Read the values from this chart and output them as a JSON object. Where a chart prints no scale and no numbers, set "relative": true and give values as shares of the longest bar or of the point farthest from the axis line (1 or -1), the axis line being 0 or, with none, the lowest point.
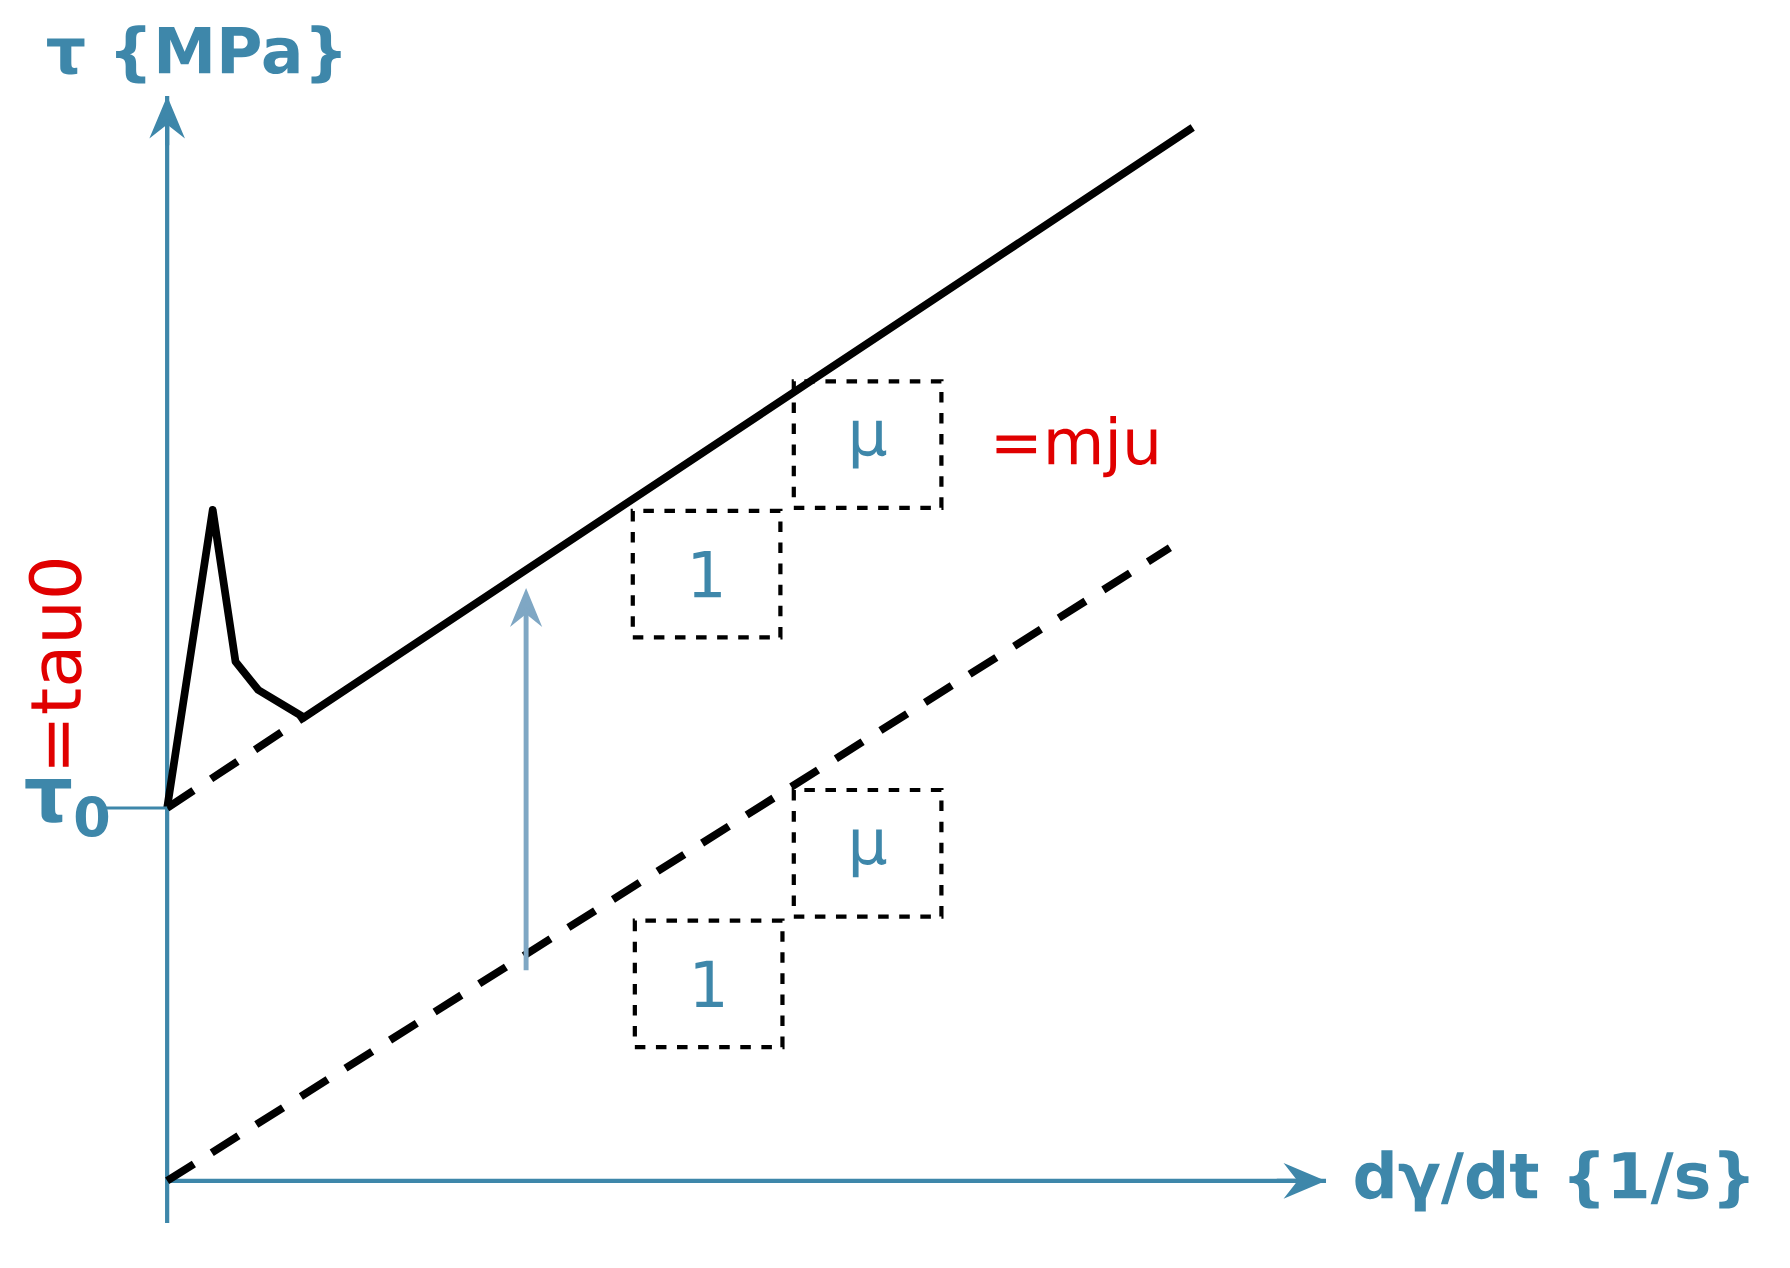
{
  "chart_data": {
    "type": "line",
    "relative": true,
    "xlabel": "dγ/dt  {1/s}",
    "ylabel": "τ {MPa}",
    "categories": [
      null,
      null,
      null,
      null,
      null,
      null,
      null,
      null,
      null,
      null,
      null,
      null,
      null,
      null,
      null,
      null,
      null,
      null,
      null,
      null,
      null,
      null,
      null,
      null,
      null,
      null,
      null,
      null,
      null,
      null,
      null,
      null,
      null,
      null,
      null,
      null,
      null,
      null,
      null,
      null,
      null,
      null,
      null,
      null,
      null,
      null
    ],
    "series": [
      {
        "color": "#000000",
        "line_style": "solid",
        "values": [
          0.354,
          null,
          0.637,
          0.493,
          0.466,
          null,
          0.44,
          null,
          null,
          null,
          null,
          null,
          null,
          null,
          null,
          null,
          null,
          null,
          null,
          null,
          null,
          null,
          null,
          null,
          null,
          null,
          null,
          null,
          null,
          null,
          null,
          null,
          null,
          null,
          null,
          null,
          null,
          null,
          null,
          null,
          null,
          null,
          null,
          null,
          null,
          1
        ]
      },
      {
        "color": "#000000",
        "line_style": "dashed",
        "values": [
          0.354,
          null,
          null,
          null,
          null,
          null,
          0.44,
          null,
          null,
          null,
          null,
          null,
          null,
          null,
          null,
          null,
          null,
          null,
          null,
          null,
          null,
          null,
          null,
          null,
          null,
          null,
          null,
          null,
          null,
          null,
          null,
          null,
          null,
          null,
          null,
          null,
          null,
          null,
          null,
          null,
          null,
          null,
          null,
          null,
          null,
          null
        ]
      },
      {
        "color": "#000000",
        "line_style": "dashed",
        "values": [
          0,
          null,
          null,
          null,
          null,
          null,
          null,
          null,
          null,
          null,
          null,
          null,
          null,
          null,
          null,
          null,
          null,
          null,
          null,
          null,
          null,
          null,
          null,
          null,
          null,
          null,
          null,
          null,
          null,
          null,
          null,
          null,
          null,
          null,
          null,
          null,
          null,
          null,
          null,
          null,
          null,
          null,
          null,
          null,
          0.601,
          null
        ]
      }
    ],
    "annotations": [
      "τ$_{0}$",
      "μ",
      "1",
      "μ",
      "1",
      "=tau0",
      "=mju"
    ]
  }
}
